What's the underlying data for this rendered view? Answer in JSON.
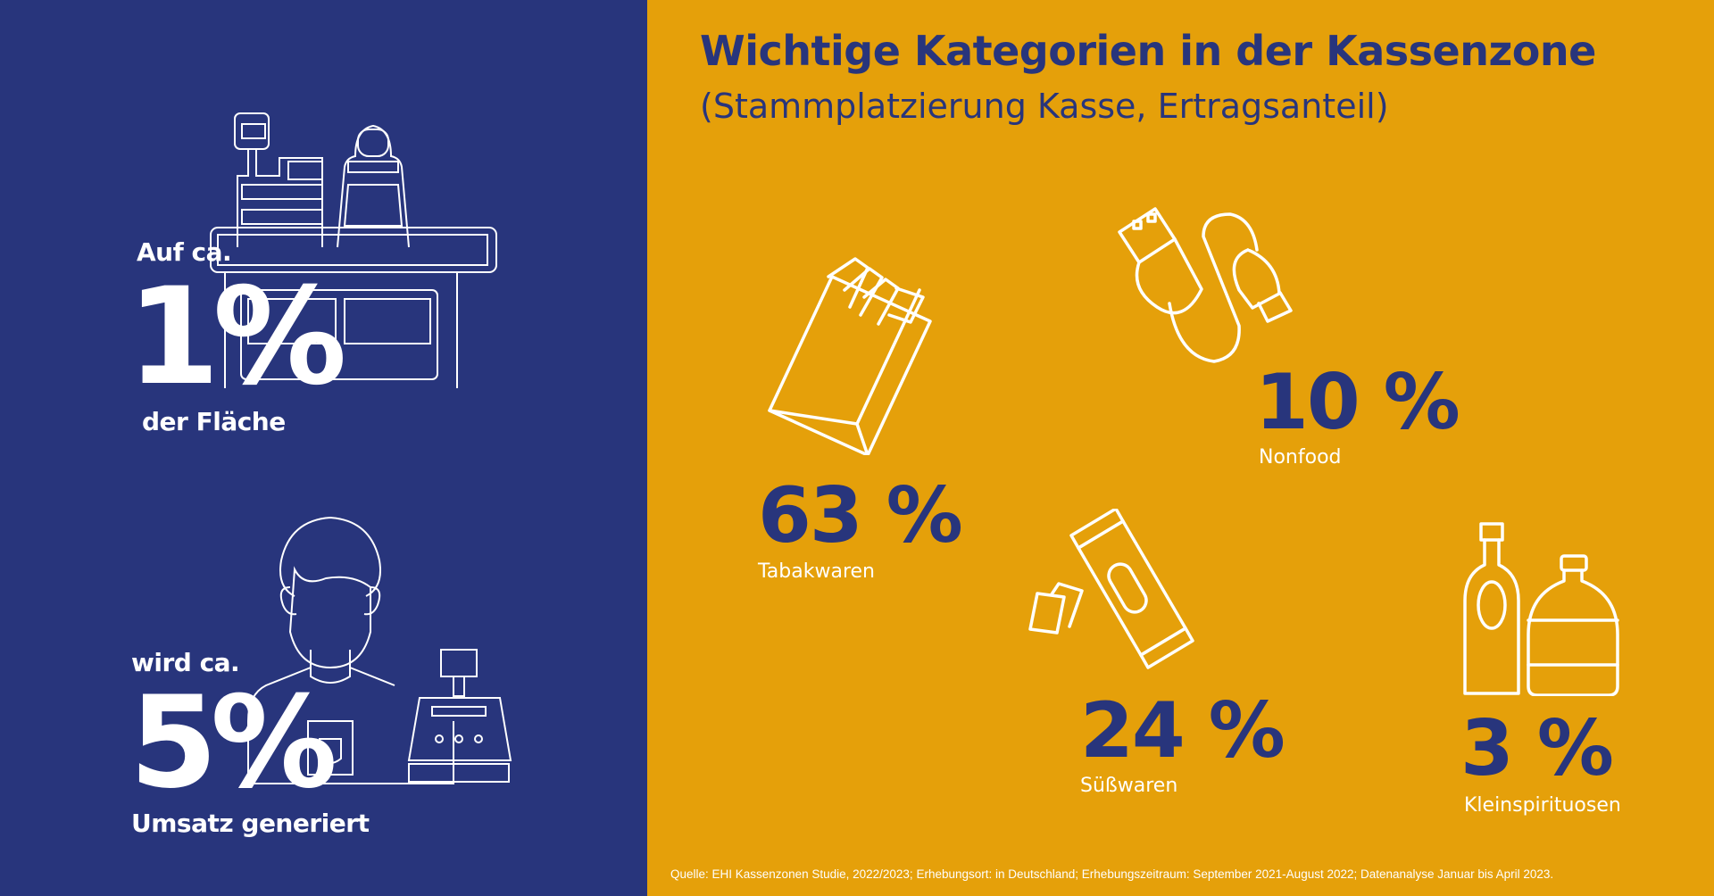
{
  "colors": {
    "left_bg": "#28357c",
    "right_bg": "#e5a00a",
    "accent_text": "#28357c",
    "text_light": "#ffffff"
  },
  "left": {
    "area": {
      "prefix": "Auf ca.",
      "value": "1%",
      "suffix": "der Fläche",
      "icon": "checkout-counter-icon"
    },
    "revenue": {
      "prefix": "wird ca.",
      "value": "5%",
      "suffix": "Umsatz generiert",
      "icon": "cashier-icon"
    }
  },
  "right": {
    "title": "Wichtige Kategorien in der Kassenzone",
    "subtitle": "(Stammplatzierung Kasse, Ertragsanteil)",
    "categories": [
      {
        "value": "63 %",
        "label": "Tabakwaren",
        "icon": "cigarette-pack-icon"
      },
      {
        "value": "10 %",
        "label": "Nonfood",
        "icon": "usb-cable-icon"
      },
      {
        "value": "24 %",
        "label": "Süßwaren",
        "icon": "candy-bar-icon"
      },
      {
        "value": "3 %",
        "label": "Kleinspirituosen",
        "icon": "liquor-bottles-icon"
      }
    ],
    "source": "Quelle: EHI Kassenzonen Studie, 2022/2023; Erhebungsort: in Deutschland; Erhebungszeitraum:  September 2021-August 2022; Datenanalyse Januar bis April 2023."
  }
}
